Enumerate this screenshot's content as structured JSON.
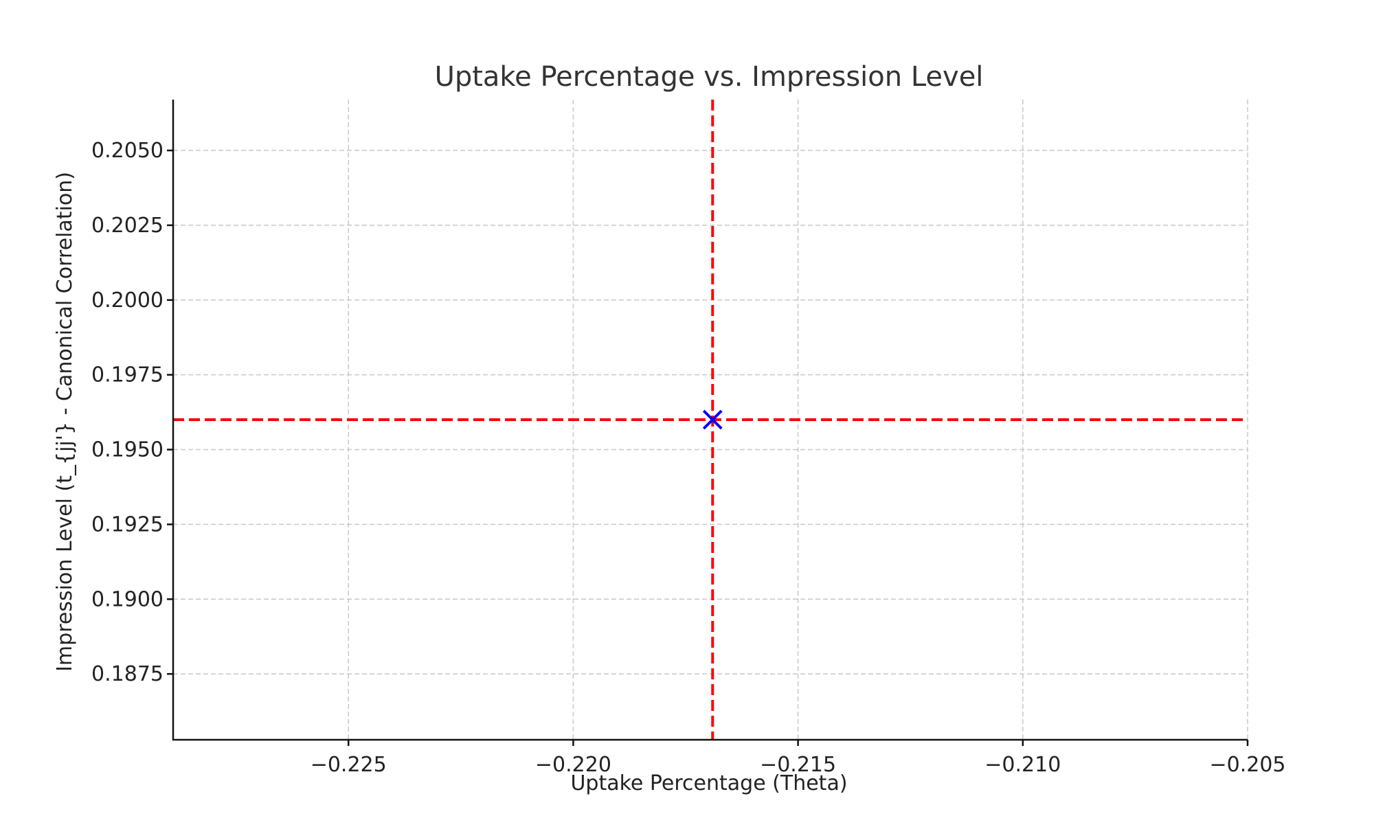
{
  "chart_data": {
    "type": "scatter",
    "title": "Uptake Percentage vs. Impression Level",
    "xlabel": "Uptake Percentage (Theta)",
    "ylabel": "Impression Level (t_{jj'} - Canonical Correlation)",
    "xlim": [
      -0.2289,
      -0.205
    ],
    "ylim": [
      0.1853,
      0.2067
    ],
    "xticks": [
      -0.225,
      -0.22,
      -0.215,
      -0.21,
      -0.205
    ],
    "xtick_labels": [
      "−0.225",
      "−0.220",
      "−0.215",
      "−0.210",
      "−0.205"
    ],
    "yticks": [
      0.1875,
      0.19,
      0.1925,
      0.195,
      0.1975,
      0.2,
      0.2025,
      0.205
    ],
    "ytick_labels": [
      "0.1875",
      "0.1900",
      "0.1925",
      "0.1950",
      "0.1975",
      "0.2000",
      "0.2025",
      "0.2050"
    ],
    "grid": true,
    "points": [
      {
        "x": -0.2169,
        "y": 0.196,
        "marker": "x",
        "color": "#0000ff"
      }
    ],
    "reference_lines": [
      {
        "orientation": "vertical",
        "value": -0.2169,
        "color": "#ff0000",
        "style": "dashed"
      },
      {
        "orientation": "horizontal",
        "value": 0.196,
        "color": "#ff0000",
        "style": "dashed"
      }
    ]
  }
}
